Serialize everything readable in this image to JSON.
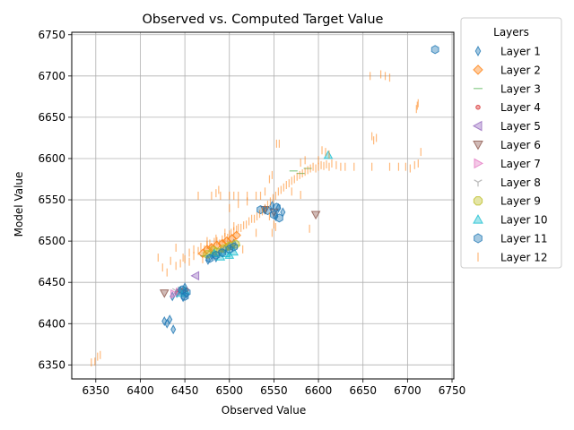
{
  "chart_data": {
    "type": "scatter",
    "title": "Observed vs. Computed Target Value",
    "xlabel": "Observed Value",
    "ylabel": "Model Value",
    "xlim": [
      6323,
      6752
    ],
    "ylim": [
      6333,
      6753
    ],
    "xticks": [
      6350,
      6400,
      6450,
      6500,
      6550,
      6600,
      6650,
      6700,
      6750
    ],
    "yticks": [
      6350,
      6400,
      6450,
      6500,
      6550,
      6600,
      6650,
      6700,
      6750
    ],
    "grid": true,
    "legend": {
      "title": "Layers",
      "placement": "outside-right"
    },
    "series": [
      {
        "name": "Layer 1",
        "marker": "thin-diamond",
        "color": "#1f77b4",
        "points": [
          [
            6427,
            6403
          ],
          [
            6430,
            6400
          ],
          [
            6433,
            6405
          ],
          [
            6437,
            6393
          ],
          [
            6436,
            6433
          ],
          [
            6441,
            6437
          ],
          [
            6445,
            6440
          ],
          [
            6450,
            6444
          ],
          [
            6452,
            6436
          ],
          [
            6448,
            6432
          ],
          [
            6476,
            6477
          ],
          [
            6480,
            6483
          ],
          [
            6485,
            6480
          ],
          [
            6490,
            6487
          ],
          [
            6495,
            6490
          ],
          [
            6500,
            6494
          ],
          [
            6505,
            6497
          ],
          [
            6540,
            6538
          ],
          [
            6548,
            6543
          ],
          [
            6552,
            6530
          ],
          [
            6555,
            6540
          ],
          [
            6560,
            6535
          ]
        ]
      },
      {
        "name": "Layer 2",
        "marker": "diamond",
        "color": "#ff7f0e",
        "points": [
          [
            6470,
            6485
          ],
          [
            6475,
            6490
          ],
          [
            6480,
            6492
          ],
          [
            6486,
            6495
          ],
          [
            6492,
            6497
          ],
          [
            6497,
            6500
          ],
          [
            6503,
            6503
          ],
          [
            6508,
            6507
          ]
        ]
      },
      {
        "name": "Layer 3",
        "marker": "hline",
        "color": "#2ca02c",
        "points": [
          [
            6472,
            6482
          ],
          [
            6478,
            6484
          ],
          [
            6484,
            6486
          ],
          [
            6490,
            6487
          ],
          [
            6496,
            6489
          ],
          [
            6502,
            6492
          ],
          [
            6508,
            6495
          ],
          [
            6572,
            6585
          ],
          [
            6580,
            6582
          ],
          [
            6588,
            6588
          ]
        ]
      },
      {
        "name": "Layer 4",
        "marker": "point",
        "color": "#d62728",
        "points": [
          [
            6442,
            6437
          ],
          [
            6447,
            6440
          ],
          [
            6452,
            6441
          ]
        ]
      },
      {
        "name": "Layer 5",
        "marker": "triangle-left",
        "color": "#9467bd",
        "points": [
          [
            6462,
            6458
          ]
        ]
      },
      {
        "name": "Layer 6",
        "marker": "triangle-down",
        "color": "#8c564b",
        "points": [
          [
            6427,
            6437
          ],
          [
            6597,
            6532
          ],
          [
            6540,
            6538
          ],
          [
            6550,
            6535
          ]
        ]
      },
      {
        "name": "Layer 7",
        "marker": "triangle-right",
        "color": "#e377c2",
        "points": [
          [
            6438,
            6436
          ],
          [
            6444,
            6438
          ]
        ]
      },
      {
        "name": "Layer 8",
        "marker": "tri-down",
        "color": "#7f7f7f",
        "points": [
          [
            6440,
            6440
          ],
          [
            6446,
            6442
          ],
          [
            6480,
            6486
          ],
          [
            6488,
            6490
          ]
        ]
      },
      {
        "name": "Layer 9",
        "marker": "octagon",
        "color": "#bcbd22",
        "points": [
          [
            6486,
            6487
          ],
          [
            6494,
            6491
          ],
          [
            6500,
            6494
          ],
          [
            6507,
            6496
          ],
          [
            6475,
            6484
          ],
          [
            6482,
            6489
          ]
        ]
      },
      {
        "name": "Layer 10",
        "marker": "triangle-up",
        "color": "#17becf",
        "points": [
          [
            6483,
            6485
          ],
          [
            6490,
            6481
          ],
          [
            6496,
            6485
          ],
          [
            6500,
            6483
          ],
          [
            6505,
            6487
          ],
          [
            6611,
            6604
          ],
          [
            6445,
            6437
          ],
          [
            6450,
            6440
          ]
        ]
      },
      {
        "name": "Layer 11",
        "marker": "hexagon",
        "color": "#1f77b4",
        "points": [
          [
            6731,
            6732
          ],
          [
            6535,
            6538
          ],
          [
            6543,
            6537
          ],
          [
            6550,
            6532
          ],
          [
            6553,
            6541
          ],
          [
            6556,
            6528
          ],
          [
            6450,
            6433
          ],
          [
            6447,
            6441
          ],
          [
            6452,
            6438
          ],
          [
            6478,
            6479
          ],
          [
            6485,
            6483
          ],
          [
            6492,
            6486
          ],
          [
            6500,
            6490
          ],
          [
            6505,
            6493
          ]
        ]
      },
      {
        "name": "Layer 12",
        "marker": "vline",
        "color": "#ff7f0e",
        "points": [
          [
            6345,
            6353
          ],
          [
            6349,
            6354
          ],
          [
            6352,
            6360
          ],
          [
            6355,
            6362
          ],
          [
            6420,
            6480
          ],
          [
            6425,
            6468
          ],
          [
            6430,
            6462
          ],
          [
            6434,
            6476
          ],
          [
            6440,
            6492
          ],
          [
            6445,
            6473
          ],
          [
            6448,
            6480
          ],
          [
            6450,
            6478
          ],
          [
            6455,
            6486
          ],
          [
            6460,
            6490
          ],
          [
            6465,
            6488
          ],
          [
            6468,
            6493
          ],
          [
            6472,
            6490
          ],
          [
            6475,
            6495
          ],
          [
            6478,
            6497
          ],
          [
            6480,
            6493
          ],
          [
            6483,
            6499
          ],
          [
            6486,
            6500
          ],
          [
            6489,
            6497
          ],
          [
            6492,
            6502
          ],
          [
            6495,
            6505
          ],
          [
            6498,
            6504
          ],
          [
            6500,
            6508
          ],
          [
            6502,
            6510
          ],
          [
            6505,
            6512
          ],
          [
            6508,
            6514
          ],
          [
            6510,
            6516
          ],
          [
            6513,
            6516
          ],
          [
            6516,
            6519
          ],
          [
            6519,
            6520
          ],
          [
            6522,
            6524
          ],
          [
            6525,
            6527
          ],
          [
            6528,
            6527
          ],
          [
            6531,
            6530
          ],
          [
            6534,
            6533
          ],
          [
            6537,
            6536
          ],
          [
            6540,
            6540
          ],
          [
            6543,
            6544
          ],
          [
            6546,
            6548
          ],
          [
            6549,
            6552
          ],
          [
            6552,
            6555
          ],
          [
            6555,
            6560
          ],
          [
            6558,
            6562
          ],
          [
            6561,
            6565
          ],
          [
            6564,
            6568
          ],
          [
            6567,
            6570
          ],
          [
            6570,
            6573
          ],
          [
            6573,
            6575
          ],
          [
            6576,
            6578
          ],
          [
            6579,
            6580
          ],
          [
            6582,
            6582
          ],
          [
            6585,
            6584
          ],
          [
            6588,
            6586
          ],
          [
            6591,
            6588
          ],
          [
            6594,
            6590
          ],
          [
            6597,
            6588
          ],
          [
            6600,
            6590
          ],
          [
            6603,
            6592
          ],
          [
            6606,
            6591
          ],
          [
            6609,
            6593
          ],
          [
            6612,
            6590
          ],
          [
            6615,
            6594
          ],
          [
            6620,
            6592
          ],
          [
            6625,
            6590
          ],
          [
            6630,
            6590
          ],
          [
            6640,
            6590
          ],
          [
            6660,
            6590
          ],
          [
            6680,
            6590
          ],
          [
            6690,
            6590
          ],
          [
            6698,
            6590
          ],
          [
            6703,
            6588
          ],
          [
            6708,
            6592
          ],
          [
            6712,
            6594
          ],
          [
            6715,
            6608
          ],
          [
            6660,
            6627
          ],
          [
            6662,
            6622
          ],
          [
            6665,
            6625
          ],
          [
            6658,
            6700
          ],
          [
            6670,
            6702
          ],
          [
            6675,
            6700
          ],
          [
            6680,
            6698
          ],
          [
            6710,
            6660
          ],
          [
            6711,
            6664
          ],
          [
            6712,
            6667
          ],
          [
            6480,
            6555
          ],
          [
            6485,
            6558
          ],
          [
            6488,
            6562
          ],
          [
            6490,
            6555
          ],
          [
            6500,
            6555
          ],
          [
            6505,
            6555
          ],
          [
            6510,
            6555
          ],
          [
            6520,
            6555
          ],
          [
            6530,
            6555
          ],
          [
            6535,
            6555
          ],
          [
            6540,
            6560
          ],
          [
            6545,
            6575
          ],
          [
            6548,
            6580
          ],
          [
            6553,
            6618
          ],
          [
            6556,
            6618
          ],
          [
            6545,
            6530
          ],
          [
            6550,
            6520
          ],
          [
            6548,
            6510
          ],
          [
            6552,
            6517
          ],
          [
            6580,
            6595
          ],
          [
            6585,
            6598
          ],
          [
            6600,
            6598
          ],
          [
            6604,
            6610
          ],
          [
            6608,
            6608
          ],
          [
            6612,
            6605
          ],
          [
            6570,
            6560
          ],
          [
            6580,
            6556
          ],
          [
            6590,
            6515
          ],
          [
            6530,
            6510
          ],
          [
            6500,
            6540
          ],
          [
            6510,
            6545
          ],
          [
            6520,
            6548
          ],
          [
            6465,
            6555
          ],
          [
            6440,
            6470
          ],
          [
            6455,
            6475
          ],
          [
            6460,
            6482
          ],
          [
            6470,
            6478
          ],
          [
            6475,
            6500
          ],
          [
            6485,
            6503
          ],
          [
            6495,
            6510
          ],
          [
            6505,
            6518
          ],
          [
            6515,
            6490
          ]
        ]
      }
    ]
  }
}
